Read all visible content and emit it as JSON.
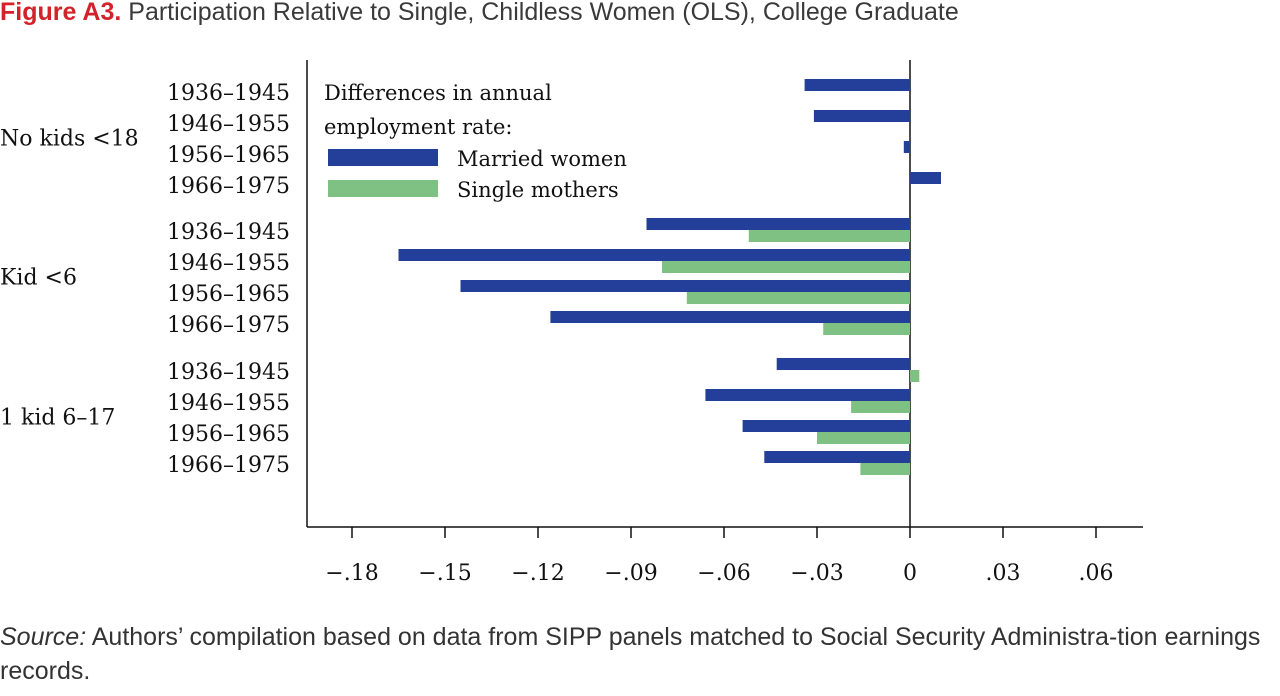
{
  "figure": {
    "label": "Figure A3.",
    "title": "Participation Relative to Single, Childless Women (OLS), College Graduate"
  },
  "source": {
    "label": "Source:",
    "text": " Authors’ compilation based on data from SIPP panels matched to Social Security Administra-tion earnings records."
  },
  "colors": {
    "married": "#233f99",
    "single": "#7fc183",
    "axis": "#111111"
  },
  "chart_data": {
    "type": "bar",
    "orientation": "horizontal",
    "title": "Participation Relative to Single, Childless Women (OLS), College Graduate",
    "legend_title": [
      "Differences in annual",
      "employment rate:"
    ],
    "legend_position": "top-left",
    "series": [
      {
        "name": "Married women",
        "color": "#233f99"
      },
      {
        "name": "Single mothers",
        "color": "#7fc183"
      }
    ],
    "xlim": [
      -0.195,
      0.075
    ],
    "xticks": [
      -0.18,
      -0.15,
      -0.12,
      -0.09,
      -0.06,
      -0.03,
      0,
      0.03,
      0.06
    ],
    "xtick_labels": [
      "−.18",
      "−.15",
      "−.12",
      "−.09",
      "−.06",
      "−.03",
      "0",
      ".03",
      ".06"
    ],
    "grid": false,
    "groups": [
      {
        "label": "No kids <18",
        "rows": [
          {
            "cohort": "1936–1945",
            "married": -0.034,
            "single": null
          },
          {
            "cohort": "1946–1955",
            "married": -0.031,
            "single": null
          },
          {
            "cohort": "1956–1965",
            "married": -0.002,
            "single": null
          },
          {
            "cohort": "1966–1975",
            "married": 0.01,
            "single": null
          }
        ]
      },
      {
        "label": "Kid <6",
        "rows": [
          {
            "cohort": "1936–1945",
            "married": -0.085,
            "single": -0.052
          },
          {
            "cohort": "1946–1955",
            "married": -0.165,
            "single": -0.08
          },
          {
            "cohort": "1956–1965",
            "married": -0.145,
            "single": -0.072
          },
          {
            "cohort": "1966–1975",
            "married": -0.116,
            "single": -0.028
          }
        ]
      },
      {
        "label": "1 kid 6–17",
        "rows": [
          {
            "cohort": "1936–1945",
            "married": -0.043,
            "single": 0.003
          },
          {
            "cohort": "1946–1955",
            "married": -0.066,
            "single": -0.019
          },
          {
            "cohort": "1956–1965",
            "married": -0.054,
            "single": -0.03
          },
          {
            "cohort": "1966–1975",
            "married": -0.047,
            "single": -0.016
          }
        ]
      }
    ]
  }
}
